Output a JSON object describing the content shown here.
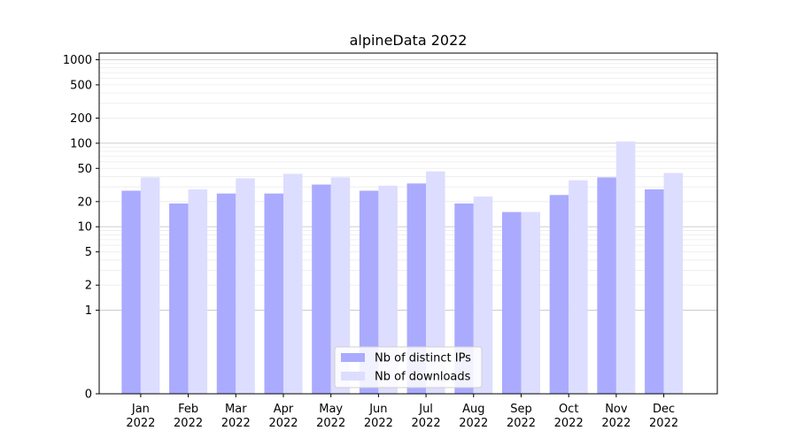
{
  "chart_data": {
    "type": "bar",
    "title": "alpineData 2022",
    "xlabel": "",
    "ylabel": "",
    "y_scale": "symlog",
    "ylim": [
      0,
      1200
    ],
    "y_ticks": [
      0,
      1,
      2,
      5,
      10,
      20,
      50,
      100,
      200,
      500,
      1000
    ],
    "y_tick_labels": [
      "0",
      "1",
      "2",
      "5",
      "10",
      "20",
      "50",
      "100",
      "200",
      "500",
      "1000"
    ],
    "grid": "horizontal",
    "legend_position": "bottom-center",
    "categories": [
      [
        "Jan",
        "2022"
      ],
      [
        "Feb",
        "2022"
      ],
      [
        "Mar",
        "2022"
      ],
      [
        "Apr",
        "2022"
      ],
      [
        "May",
        "2022"
      ],
      [
        "Jun",
        "2022"
      ],
      [
        "Jul",
        "2022"
      ],
      [
        "Aug",
        "2022"
      ],
      [
        "Sep",
        "2022"
      ],
      [
        "Oct",
        "2022"
      ],
      [
        "Nov",
        "2022"
      ],
      [
        "Dec",
        "2022"
      ]
    ],
    "series": [
      {
        "name": "Nb of distinct IPs",
        "color": "#aaaaff",
        "values": [
          27,
          19,
          25,
          25,
          32,
          27,
          33,
          19,
          15,
          24,
          39,
          28
        ]
      },
      {
        "name": "Nb of downloads",
        "color": "#ddddff",
        "values": [
          39,
          28,
          38,
          43,
          39,
          31,
          46,
          23,
          15,
          36,
          105,
          44
        ]
      }
    ]
  }
}
